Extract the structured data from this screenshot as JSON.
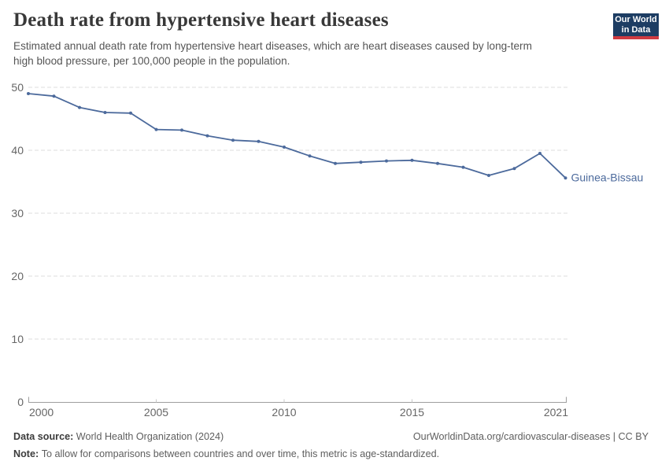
{
  "header": {
    "title": "Death rate from hypertensive heart diseases",
    "subtitle_lines": [
      "Estimated annual death rate from hypertensive heart diseases, which are heart diseases caused by long-term",
      "high blood pressure, per 100,000 people in the population."
    ]
  },
  "logo": {
    "line1": "Our World",
    "line2": "in Data"
  },
  "chart_data": {
    "type": "line",
    "title": "Death rate from hypertensive heart diseases",
    "x": [
      2000,
      2001,
      2002,
      2003,
      2004,
      2005,
      2006,
      2007,
      2008,
      2009,
      2010,
      2011,
      2012,
      2013,
      2014,
      2015,
      2016,
      2017,
      2018,
      2019,
      2020,
      2021
    ],
    "series": [
      {
        "name": "Guinea-Bissau",
        "color": "#4C6A9C",
        "values": [
          49.0,
          48.6,
          46.8,
          46.0,
          45.9,
          43.3,
          43.2,
          42.3,
          41.6,
          41.4,
          40.5,
          39.1,
          37.9,
          38.1,
          38.3,
          38.4,
          37.9,
          37.3,
          36.0,
          37.1,
          39.5,
          35.6
        ]
      }
    ],
    "xticks": [
      2000,
      2005,
      2010,
      2015,
      2021
    ],
    "yticks": [
      0,
      10,
      20,
      30,
      40,
      50
    ],
    "xlim": [
      2000,
      2021
    ],
    "ylim": [
      0,
      50
    ],
    "grid": "horizontal-dashed",
    "legend_position": "line-end-label"
  },
  "footer": {
    "source_label": "Data source:",
    "source_text": "World Health Organization (2024)",
    "right_text": "OurWorldinData.org/cardiovascular-diseases | CC BY",
    "note_label": "Note:",
    "note_text": "To allow for comparisons between countries and over time, this metric is age-standardized."
  },
  "colors": {
    "series_blue": "#4C6A9C",
    "grid_line": "#dcdcdc",
    "axis_line": "#9e9e9e",
    "minor_tick": "#c8c8c8",
    "tick_label": "#666666",
    "logo_bg": "#1d3d63",
    "logo_bar": "#cf3a41"
  }
}
